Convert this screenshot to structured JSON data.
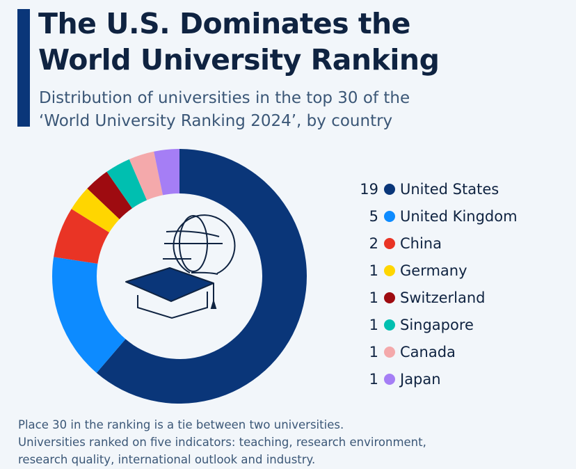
{
  "title_line1": "The U.S. Dominates the",
  "title_line2": "World University Ranking",
  "subtitle_line1": "Distribution of universities in the top 30 of the",
  "subtitle_line2": "‘World University Ranking 2024’, by country",
  "footer": [
    "Place 30 in the ranking is a tie between two universities.",
    "Universities ranked on five indicators: teaching, research environment,",
    "research quality, international outlook and industry."
  ],
  "center_icon": "graduation-cap-globe-icon",
  "chart_data": {
    "type": "pie",
    "donut": true,
    "legend_position": "right",
    "categories": [
      "United States",
      "United Kingdom",
      "China",
      "Germany",
      "Switzerland",
      "Singapore",
      "Canada",
      "Japan"
    ],
    "values": [
      19,
      5,
      2,
      1,
      1,
      1,
      1,
      1
    ],
    "labels": [
      "19",
      "5",
      "2",
      "1",
      "1",
      "1",
      "1",
      "1"
    ],
    "colors": [
      "#0a3679",
      "#0d8bff",
      "#e93425",
      "#ffd600",
      "#9e0b10",
      "#00bfb0",
      "#f4a9ab",
      "#a57ef5"
    ]
  }
}
